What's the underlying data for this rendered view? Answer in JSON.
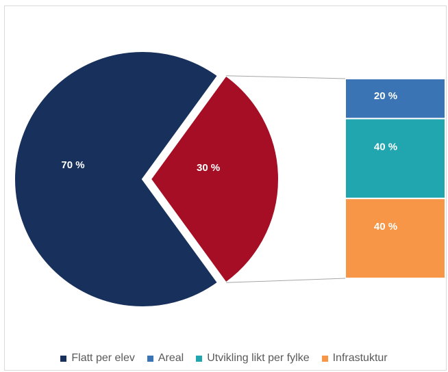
{
  "chart_data": {
    "type": "pie",
    "title": "",
    "main_slices": [
      {
        "name": "Flatt per elev",
        "value": 70,
        "label": "70 %",
        "color": "#17305c"
      },
      {
        "name": "Areal, Utvikling likt per fylke, Infrastuktur",
        "value": 30,
        "label": "30 %",
        "color": "#a50e24"
      }
    ],
    "breakdown": [
      {
        "name": "Areal",
        "value": 20,
        "label": "20 %",
        "color": "#3a74b4"
      },
      {
        "name": "Utvikling likt per fylke",
        "value": 40,
        "label": "40 %",
        "color": "#21a6b0"
      },
      {
        "name": "Infrastuktur",
        "value": 40,
        "label": "40 %",
        "color": "#f79646"
      }
    ],
    "legend": [
      {
        "name": "Flatt per elev",
        "color": "#17305c"
      },
      {
        "name": "Areal",
        "color": "#3a74b4"
      },
      {
        "name": "Utvikling likt per fylke",
        "color": "#21a6b0"
      },
      {
        "name": "Infrastuktur",
        "color": "#f79646"
      }
    ],
    "legend_position": "bottom"
  }
}
